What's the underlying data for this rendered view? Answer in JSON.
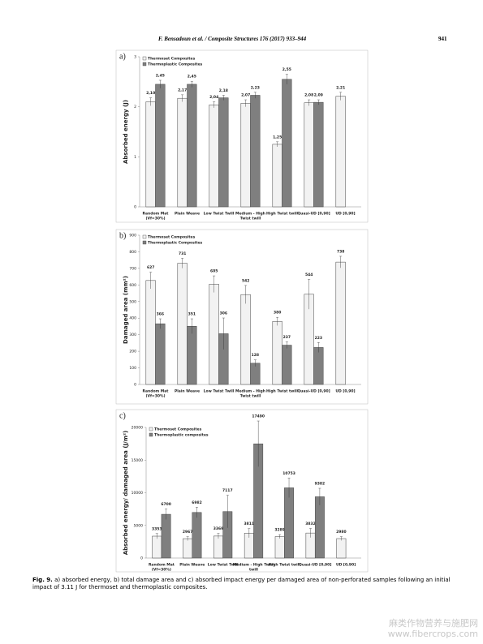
{
  "header": {
    "running_title": "F. Bensadoun et al. / Composite Structures 176 (2017) 933–944",
    "page_number": "941"
  },
  "chart_data": [
    {
      "type": "bar",
      "panel_label": "a)",
      "y_label": "Absorbed energy (J)",
      "categories": [
        [
          "Random Mat",
          "(Vf=30%)"
        ],
        [
          "Plain Weave"
        ],
        [
          "Low Twist Twill"
        ],
        [
          "Medium - High",
          "Twist twill"
        ],
        [
          "High Twist twill"
        ],
        [
          "Quasi-UD [0,90]"
        ],
        [
          "UD [0,90]"
        ]
      ],
      "series": [
        {
          "name": "Thermoset Composites",
          "color": "#f2f2f2",
          "values": [
            2.1,
            2.17,
            2.04,
            2.07,
            1.25,
            2.08,
            2.21
          ],
          "value_labels": [
            "2,10",
            "2,17",
            "2,04",
            "2,07",
            "1,25",
            "2,08",
            "2,21"
          ],
          "errors": [
            0.08,
            0.07,
            0.06,
            0.07,
            0.05,
            0.06,
            0.08
          ]
        },
        {
          "name": "Thermoplastic Composites",
          "color": "#7f7f7f",
          "values": [
            2.45,
            2.45,
            2.18,
            2.23,
            2.55,
            2.09,
            null
          ],
          "value_labels": [
            "2,45",
            "2,45",
            "2,18",
            "2,23",
            "2,55",
            "2,09",
            null
          ],
          "errors": [
            0.08,
            0.06,
            0.05,
            0.06,
            0.1,
            0.05,
            null
          ]
        }
      ],
      "ylim": [
        0,
        3
      ],
      "yticks": [
        0,
        1,
        2,
        3
      ],
      "legend": "top-left"
    },
    {
      "type": "bar",
      "panel_label": "b)",
      "y_label": "Damaged area (mm²)",
      "categories": [
        [
          "Random Mat",
          "(Vf=30%)"
        ],
        [
          "Plain Weave"
        ],
        [
          "Low Twist Twill"
        ],
        [
          "Medium - High",
          "Twist twill"
        ],
        [
          "High Twist twill"
        ],
        [
          "Quasi-UD [0,90]"
        ],
        [
          "UD [0,90]"
        ]
      ],
      "series": [
        {
          "name": "Thermoset Composites",
          "color": "#f2f2f2",
          "values": [
            627,
            731,
            605,
            542,
            380,
            544,
            738
          ],
          "errors": [
            50,
            30,
            50,
            55,
            25,
            90,
            35
          ]
        },
        {
          "name": "Thermoplastic Composites",
          "color": "#7f7f7f",
          "values": [
            366,
            351,
            306,
            128,
            237,
            223,
            null
          ],
          "errors": [
            30,
            45,
            95,
            20,
            20,
            30,
            null
          ]
        }
      ],
      "ylim": [
        0,
        900
      ],
      "yticks": [
        0,
        100,
        200,
        300,
        400,
        500,
        600,
        700,
        800,
        900
      ],
      "legend": "top-left"
    },
    {
      "type": "bar",
      "panel_label": "c)",
      "y_label": "Absorbed energy/ damaged area (J/m²)",
      "categories": [
        [
          "Random Mat",
          "(Vf=30%)"
        ],
        [
          "Plain Weave"
        ],
        [
          "Low Twist Twill"
        ],
        [
          "Medium - High Twist",
          "twill"
        ],
        [
          "High Twist twill"
        ],
        [
          "Quasi-UD [0,90]"
        ],
        [
          "UD [0,90]"
        ]
      ],
      "series": [
        {
          "name": "Thermoset Composites",
          "color": "#f2f2f2",
          "values": [
            3353,
            2967,
            3369,
            3811,
            3289,
            3832,
            2980
          ],
          "errors": [
            400,
            300,
            400,
            700,
            300,
            700,
            300
          ]
        },
        {
          "name": "Thermoplastic composites",
          "color": "#7f7f7f",
          "values": [
            6700,
            6982,
            7117,
            17490,
            10753,
            9382,
            null
          ],
          "errors": [
            800,
            800,
            2500,
            3500,
            1500,
            1300,
            null
          ]
        }
      ],
      "ylim": [
        0,
        20000
      ],
      "yticks": [
        0,
        5000,
        10000,
        15000,
        20000
      ],
      "legend": "top-left"
    }
  ],
  "caption": {
    "label": "Fig. 9.",
    "text": "a) absorbed energy, b) total damage area and c) absorbed impact energy per damaged area of non-perforated samples following an initial impact of 3.11 J for thermoset and thermoplastic composites."
  },
  "watermark": {
    "line1": "麻类作物营养与施肥网",
    "line2": "www.fibercrops.com"
  }
}
